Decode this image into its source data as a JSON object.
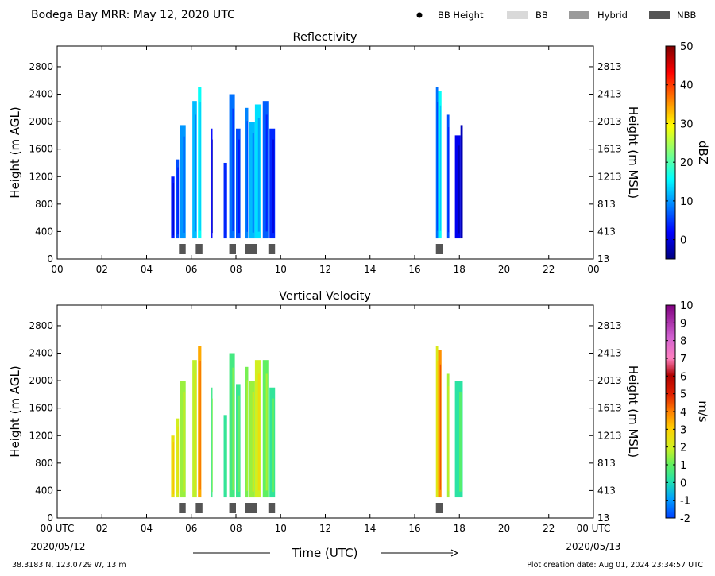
{
  "header": {
    "title": "Bodega Bay MRR:  May 12, 2020 UTC",
    "legend": [
      {
        "label": "BB Height",
        "marker": "dot",
        "color": "#000000"
      },
      {
        "label": "BB",
        "marker": "swatch",
        "color": "#d9d9d9"
      },
      {
        "label": "Hybrid",
        "marker": "swatch",
        "color": "#9a9a9a"
      },
      {
        "label": "NBB",
        "marker": "swatch",
        "color": "#555555"
      }
    ]
  },
  "footer": {
    "location": "38.3183 N, 123.0729 W, 13 m",
    "created": "Plot creation date: Aug 01, 2024 23:34:57 UTC",
    "time_label": "Time (UTC)",
    "start_date": "2020/05/12",
    "end_date": "2020/05/13"
  },
  "chart_data": [
    {
      "type": "heatmap",
      "title": "Reflectivity",
      "xlabel": "",
      "ylabel": "Height (m AGL)",
      "y2label": "Height (m MSL)",
      "xlim": [
        0,
        24
      ],
      "ylim": [
        0,
        3100
      ],
      "x_ticks": [
        "00",
        "02",
        "04",
        "06",
        "08",
        "10",
        "12",
        "14",
        "16",
        "18",
        "20",
        "22",
        "00"
      ],
      "y_ticks": [
        0,
        400,
        800,
        1200,
        1600,
        2000,
        2400,
        2800
      ],
      "y2_ticks": [
        13,
        413,
        813,
        1213,
        1613,
        2013,
        2413,
        2813
      ],
      "colorbar": {
        "label": "dBZ",
        "range": [
          -5,
          50
        ],
        "ticks": [
          0,
          10,
          20,
          30,
          40,
          50
        ],
        "colormap": "jet"
      },
      "columns": [
        {
          "t0": 5.1,
          "t1": 5.25,
          "top": 1200,
          "value": 3
        },
        {
          "t0": 5.3,
          "t1": 5.45,
          "top": 1450,
          "value": 6
        },
        {
          "t0": 5.5,
          "t1": 5.75,
          "top": 1950,
          "value": 10
        },
        {
          "t0": 6.05,
          "t1": 6.25,
          "top": 2300,
          "value": 12
        },
        {
          "t0": 6.3,
          "t1": 6.45,
          "top": 2500,
          "value": 16
        },
        {
          "t0": 6.9,
          "t1": 6.95,
          "top": 1900,
          "value": 2
        },
        {
          "t0": 7.45,
          "t1": 7.6,
          "top": 1400,
          "value": 4
        },
        {
          "t0": 7.7,
          "t1": 7.95,
          "top": 2400,
          "value": 8
        },
        {
          "t0": 8.0,
          "t1": 8.2,
          "top": 1900,
          "value": 6
        },
        {
          "t0": 8.4,
          "t1": 8.55,
          "top": 2200,
          "value": 9
        },
        {
          "t0": 8.6,
          "t1": 8.85,
          "top": 2000,
          "value": 12
        },
        {
          "t0": 8.85,
          "t1": 9.1,
          "top": 2250,
          "value": 14
        },
        {
          "t0": 9.2,
          "t1": 9.45,
          "top": 2300,
          "value": 7
        },
        {
          "t0": 9.5,
          "t1": 9.75,
          "top": 1900,
          "value": 4
        },
        {
          "t0": 16.95,
          "t1": 17.05,
          "top": 2500,
          "value": 8
        },
        {
          "t0": 17.05,
          "t1": 17.2,
          "top": 2450,
          "value": 16
        },
        {
          "t0": 17.45,
          "t1": 17.55,
          "top": 2100,
          "value": 6
        },
        {
          "t0": 17.8,
          "t1": 18.05,
          "top": 1800,
          "value": 1
        },
        {
          "t0": 18.05,
          "t1": 18.15,
          "top": 1950,
          "value": -2
        }
      ],
      "bb_flags": [
        {
          "t0": 5.45,
          "t1": 5.75,
          "type": "NBB"
        },
        {
          "t0": 6.2,
          "t1": 6.5,
          "type": "NBB"
        },
        {
          "t0": 7.7,
          "t1": 8.0,
          "type": "NBB"
        },
        {
          "t0": 8.4,
          "t1": 8.95,
          "type": "NBB"
        },
        {
          "t0": 9.45,
          "t1": 9.75,
          "type": "NBB"
        },
        {
          "t0": 16.95,
          "t1": 17.25,
          "type": "NBB"
        }
      ]
    },
    {
      "type": "heatmap",
      "title": "Vertical Velocity",
      "xlabel": "Time (UTC)",
      "ylabel": "Height (m AGL)",
      "y2label": "Height (m MSL)",
      "xlim": [
        0,
        24
      ],
      "ylim": [
        0,
        3100
      ],
      "x_ticks": [
        "00 UTC",
        "02",
        "04",
        "06",
        "08",
        "10",
        "12",
        "14",
        "16",
        "18",
        "20",
        "22",
        "00 UTC"
      ],
      "y_ticks": [
        0,
        400,
        800,
        1200,
        1600,
        2000,
        2400,
        2800
      ],
      "y2_ticks": [
        13,
        413,
        813,
        1213,
        1613,
        2013,
        2413,
        2813
      ],
      "colorbar": {
        "label": "m/s",
        "range": [
          -2,
          10
        ],
        "ticks": [
          -2,
          -1,
          0,
          1,
          2,
          3,
          4,
          5,
          6,
          7,
          8,
          9,
          10
        ],
        "colormap": "velocity"
      },
      "columns": [
        {
          "t0": 5.1,
          "t1": 5.25,
          "top": 1200,
          "value": 2.5
        },
        {
          "t0": 5.3,
          "t1": 5.45,
          "top": 1450,
          "value": 2.0
        },
        {
          "t0": 5.5,
          "t1": 5.75,
          "top": 2000,
          "value": 1.5
        },
        {
          "t0": 6.05,
          "t1": 6.25,
          "top": 2300,
          "value": 1.8
        },
        {
          "t0": 6.3,
          "t1": 6.45,
          "top": 2500,
          "value": 3.5
        },
        {
          "t0": 6.9,
          "t1": 6.95,
          "top": 1900,
          "value": 0.5
        },
        {
          "t0": 7.45,
          "t1": 7.6,
          "top": 1500,
          "value": 0.3
        },
        {
          "t0": 7.7,
          "t1": 7.95,
          "top": 2400,
          "value": 0.6
        },
        {
          "t0": 8.0,
          "t1": 8.2,
          "top": 1950,
          "value": 0.4
        },
        {
          "t0": 8.4,
          "t1": 8.55,
          "top": 2200,
          "value": 1.2
        },
        {
          "t0": 8.6,
          "t1": 8.85,
          "top": 2000,
          "value": 1.5
        },
        {
          "t0": 8.85,
          "t1": 9.1,
          "top": 2300,
          "value": 2.0
        },
        {
          "t0": 9.2,
          "t1": 9.45,
          "top": 2300,
          "value": 1.0
        },
        {
          "t0": 9.5,
          "t1": 9.75,
          "top": 1900,
          "value": 0.3
        },
        {
          "t0": 16.95,
          "t1": 17.05,
          "top": 2500,
          "value": 2.2
        },
        {
          "t0": 17.05,
          "t1": 17.2,
          "top": 2450,
          "value": 3.8
        },
        {
          "t0": 17.45,
          "t1": 17.55,
          "top": 2100,
          "value": 1.6
        },
        {
          "t0": 17.8,
          "t1": 18.15,
          "top": 2000,
          "value": 0.2
        }
      ],
      "bb_flags": [
        {
          "t0": 5.45,
          "t1": 5.75,
          "type": "NBB"
        },
        {
          "t0": 6.2,
          "t1": 6.5,
          "type": "NBB"
        },
        {
          "t0": 7.7,
          "t1": 8.0,
          "type": "NBB"
        },
        {
          "t0": 8.4,
          "t1": 8.95,
          "type": "NBB"
        },
        {
          "t0": 9.45,
          "t1": 9.75,
          "type": "NBB"
        },
        {
          "t0": 16.95,
          "t1": 17.25,
          "type": "NBB"
        }
      ]
    }
  ]
}
